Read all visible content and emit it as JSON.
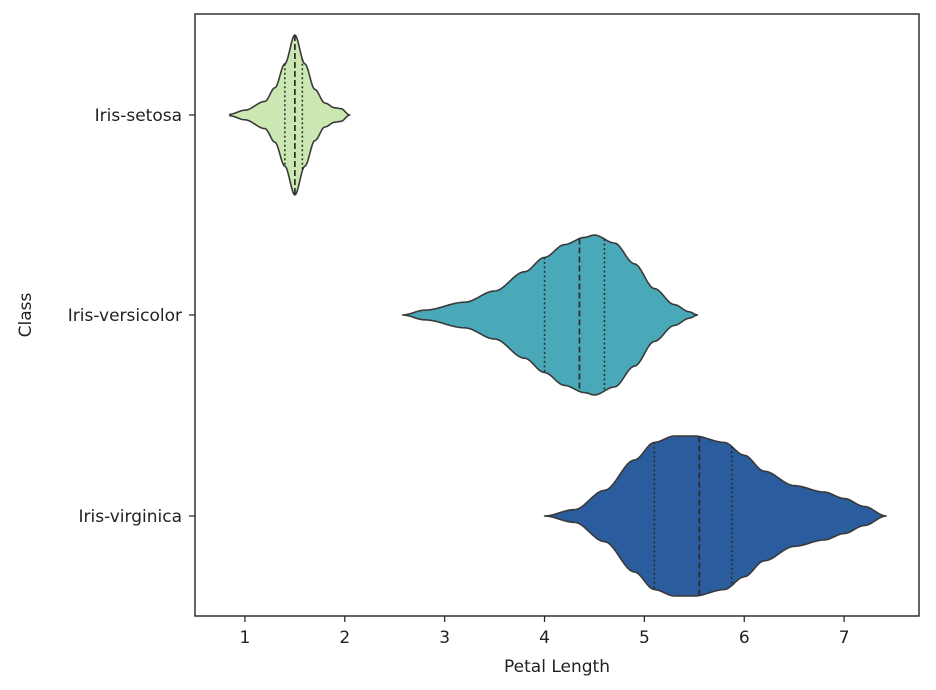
{
  "chart_data": {
    "type": "violin",
    "orientation": "horizontal",
    "xlabel": "Petal Length",
    "ylabel": "Class",
    "xlim": [
      0.5,
      7.75
    ],
    "x_ticks": [
      "1",
      "2",
      "3",
      "4",
      "5",
      "6",
      "7"
    ],
    "x_tick_values": [
      1,
      2,
      3,
      4,
      5,
      6,
      7
    ],
    "categories": [
      "Iris-setosa",
      "Iris-versicolor",
      "Iris-virginica"
    ],
    "grid": false,
    "legend": "none",
    "inner": "quartile",
    "series": [
      {
        "category": "Iris-setosa",
        "color": "#cbe8b2",
        "min": 0.85,
        "max": 2.05,
        "quartiles": [
          1.4,
          1.5,
          1.575
        ],
        "density_profile": [
          [
            0.85,
            0.01
          ],
          [
            1.0,
            0.06
          ],
          [
            1.2,
            0.17
          ],
          [
            1.3,
            0.34
          ],
          [
            1.4,
            0.64
          ],
          [
            1.5,
            1.0
          ],
          [
            1.6,
            0.64
          ],
          [
            1.7,
            0.32
          ],
          [
            1.8,
            0.15
          ],
          [
            1.9,
            0.09
          ],
          [
            1.96,
            0.08
          ],
          [
            2.05,
            0.0
          ]
        ]
      },
      {
        "category": "Iris-versicolor",
        "color": "#4aa9b8",
        "min": 2.58,
        "max": 5.53,
        "quartiles": [
          4.0,
          4.35,
          4.6
        ],
        "density_profile": [
          [
            2.58,
            0.0
          ],
          [
            2.8,
            0.06
          ],
          [
            3.2,
            0.16
          ],
          [
            3.5,
            0.3
          ],
          [
            3.8,
            0.54
          ],
          [
            4.0,
            0.72
          ],
          [
            4.2,
            0.88
          ],
          [
            4.4,
            0.97
          ],
          [
            4.5,
            1.0
          ],
          [
            4.7,
            0.9
          ],
          [
            4.9,
            0.64
          ],
          [
            5.1,
            0.33
          ],
          [
            5.3,
            0.13
          ],
          [
            5.45,
            0.04
          ],
          [
            5.53,
            0.0
          ]
        ]
      },
      {
        "category": "Iris-virginica",
        "color": "#2b5c9e",
        "min": 4.0,
        "max": 7.42,
        "quartiles": [
          5.1,
          5.55,
          5.875
        ],
        "density_profile": [
          [
            4.0,
            0.0
          ],
          [
            4.3,
            0.08
          ],
          [
            4.6,
            0.32
          ],
          [
            4.9,
            0.7
          ],
          [
            5.1,
            0.92
          ],
          [
            5.3,
            1.0
          ],
          [
            5.5,
            1.0
          ],
          [
            5.8,
            0.92
          ],
          [
            6.0,
            0.76
          ],
          [
            6.2,
            0.56
          ],
          [
            6.5,
            0.38
          ],
          [
            6.8,
            0.3
          ],
          [
            7.0,
            0.22
          ],
          [
            7.2,
            0.12
          ],
          [
            7.42,
            0.0
          ]
        ]
      }
    ]
  }
}
